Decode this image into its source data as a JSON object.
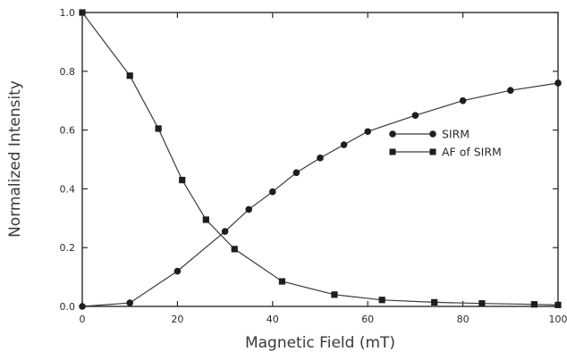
{
  "chart_data": {
    "type": "line",
    "title": "",
    "xlabel": "Magnetic Field (mT)",
    "ylabel": "Normalized Intensity",
    "xlim": [
      0,
      100
    ],
    "ylim": [
      0,
      1.0
    ],
    "x_ticks": [
      "0",
      "20",
      "40",
      "60",
      "80",
      "100"
    ],
    "y_ticks": [
      "0.0",
      "0.2",
      "0.4",
      "0.6",
      "0.8",
      "1.0"
    ],
    "grid": false,
    "legend_position": "center-right",
    "series": [
      {
        "name": "SIRM",
        "marker": "circle",
        "x": [
          0,
          10,
          20,
          30,
          35,
          40,
          45,
          50,
          55,
          60,
          70,
          80,
          90,
          100
        ],
        "y": [
          0.0,
          0.012,
          0.12,
          0.255,
          0.33,
          0.39,
          0.455,
          0.505,
          0.55,
          0.595,
          0.65,
          0.7,
          0.735,
          0.76
        ]
      },
      {
        "name": "AF of SIRM",
        "marker": "square",
        "x": [
          0,
          10,
          16,
          21,
          26,
          32,
          42,
          53,
          63,
          74,
          84,
          95,
          100
        ],
        "y": [
          1.0,
          0.785,
          0.605,
          0.43,
          0.295,
          0.195,
          0.085,
          0.04,
          0.022,
          0.014,
          0.01,
          0.007,
          0.005
        ]
      }
    ]
  }
}
